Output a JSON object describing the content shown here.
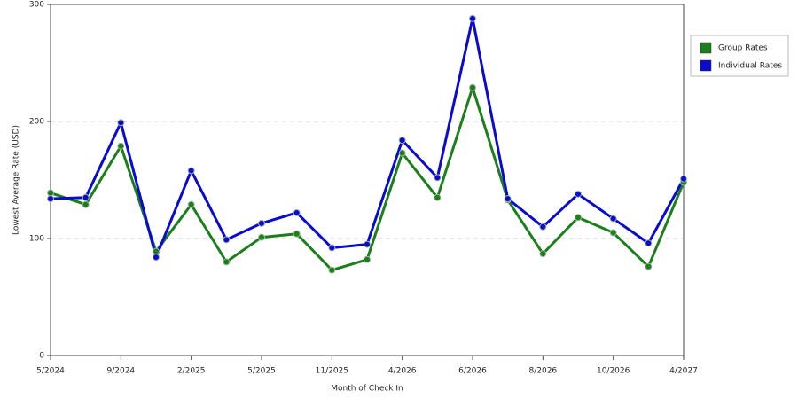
{
  "chart_data": {
    "type": "line",
    "x_label": "Month of Check In",
    "y_label": "Lowest Average Rate (USD)",
    "categories": [
      "5/2024",
      null,
      "9/2024",
      null,
      "2/2025",
      null,
      "5/2025",
      null,
      "11/2025",
      null,
      "4/2026",
      null,
      "6/2026",
      null,
      "8/2026",
      null,
      "10/2026",
      null,
      "4/2027"
    ],
    "series": [
      {
        "name": "Group Rates",
        "color": "#1b7f1b",
        "values": [
          139,
          129,
          179,
          89,
          129,
          80,
          101,
          104,
          73,
          82,
          173,
          135,
          229,
          133,
          87,
          118,
          105,
          76,
          148
        ]
      },
      {
        "name": "Individual Rates",
        "color": "#0a0ad0",
        "values": [
          134,
          135,
          199,
          84,
          158,
          99,
          113,
          122,
          92,
          95,
          184,
          152,
          288,
          134,
          110,
          138,
          117,
          96,
          151
        ]
      }
    ],
    "ylim": [
      0,
      300
    ],
    "yticks": [
      0,
      100,
      200,
      300
    ],
    "grid": true,
    "legend": "right"
  }
}
